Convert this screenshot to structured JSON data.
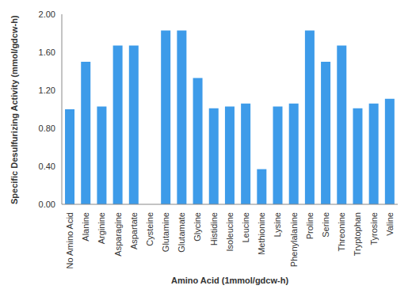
{
  "chart_data": {
    "type": "bar",
    "xlabel": "Amino Acid (1mmol/gdcw-h)",
    "ylabel": "Specific Desulfurizing Activity (mmol/gdcw-h)",
    "categories": [
      "No Amino Acid",
      "Alanine",
      "Arginine",
      "Asparagine",
      "Aspartate",
      "Cysteine",
      "Glutamine",
      "Glutamate",
      "Glycine",
      "Histidine",
      "Isoleucine",
      "Leucine",
      "Methionine",
      "Lysine",
      "Phenylalanine",
      "Proline",
      "Serine",
      "Threonine",
      "Tryptophan",
      "Tyrosine",
      "Valine"
    ],
    "values": [
      1.0,
      1.5,
      1.03,
      1.67,
      1.67,
      0,
      1.83,
      1.83,
      1.33,
      1.01,
      1.03,
      1.06,
      0.37,
      1.03,
      1.06,
      1.83,
      1.5,
      1.67,
      1.01,
      1.06,
      1.11
    ],
    "color": "#3d9be9",
    "ylim": [
      0,
      2
    ],
    "yticks": [
      {
        "value": 0,
        "label": "0.00"
      },
      {
        "value": 0.4,
        "label": "0.40"
      },
      {
        "value": 0.8,
        "label": "0.80"
      },
      {
        "value": 1.2,
        "label": "1.20"
      },
      {
        "value": 1.6,
        "label": "1.60"
      },
      {
        "value": 2,
        "label": "2.00"
      }
    ],
    "grid": false
  }
}
